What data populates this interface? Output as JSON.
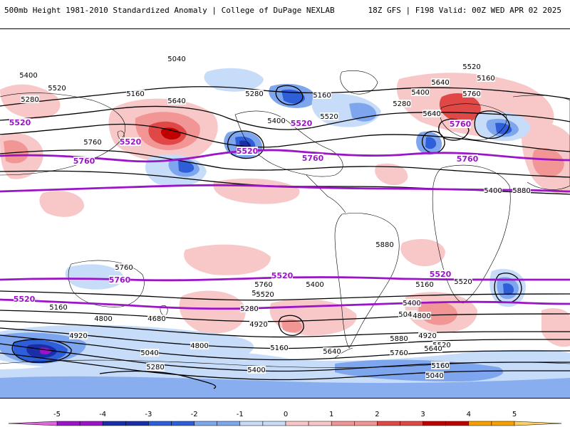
{
  "header": {
    "title_left": "500mb Height 1981-2010 Standardized Anomaly | College of DuPage NEXLAB",
    "title_right": "18Z GFS | F198 Valid: 00Z WED APR 02 2025"
  },
  "map": {
    "black_contour_labels": [
      "5040",
      "5400",
      "5520",
      "5280",
      "5160",
      "5640",
      "5760",
      "5280",
      "5400",
      "5160",
      "5520",
      "5280",
      "5400",
      "5640",
      "5760",
      "5160",
      "5640",
      "5520",
      "5400",
      "5880",
      "5880",
      "5760",
      "5760",
      "5640",
      "5520",
      "5400",
      "5520",
      "5400",
      "5160",
      "5040",
      "5280",
      "4920",
      "5160",
      "4800",
      "4680",
      "4800",
      "4920",
      "5040",
      "5160",
      "5280",
      "5400",
      "5640",
      "5880",
      "5520",
      "5760",
      "5640",
      "4920",
      "4800",
      "5040",
      "5160"
    ],
    "purple_contour_labels": [
      "5520",
      "5520",
      "5520",
      "5520",
      "5760",
      "5760",
      "5760",
      "5760",
      "5760",
      "5520",
      "5520",
      "5520"
    ],
    "colors": {
      "positive_light": "#f8c8c8",
      "positive_mid": "#f19595",
      "positive_strong": "#e04848",
      "positive_max": "#c00000",
      "negative_light": "#c6dcf8",
      "negative_mid": "#7ea6ee",
      "negative_strong": "#2e5fd8",
      "negative_max": "#1a2ea8",
      "contour_black": "#000000",
      "contour_purple": "#9b14c8"
    }
  },
  "colorbar": {
    "ticks": [
      "-5",
      "-4",
      "-3",
      "-2",
      "-1",
      "0",
      "1",
      "2",
      "3",
      "4",
      "5"
    ],
    "colors": [
      "#e066e0",
      "#9b14c8",
      "#1a2ea8",
      "#2e5fd8",
      "#7ea6ee",
      "#c6dcf8",
      "#ffffff",
      "#f8c8c8",
      "#f19595",
      "#e04848",
      "#c00000",
      "#f7a000",
      "#ffd060"
    ]
  }
}
